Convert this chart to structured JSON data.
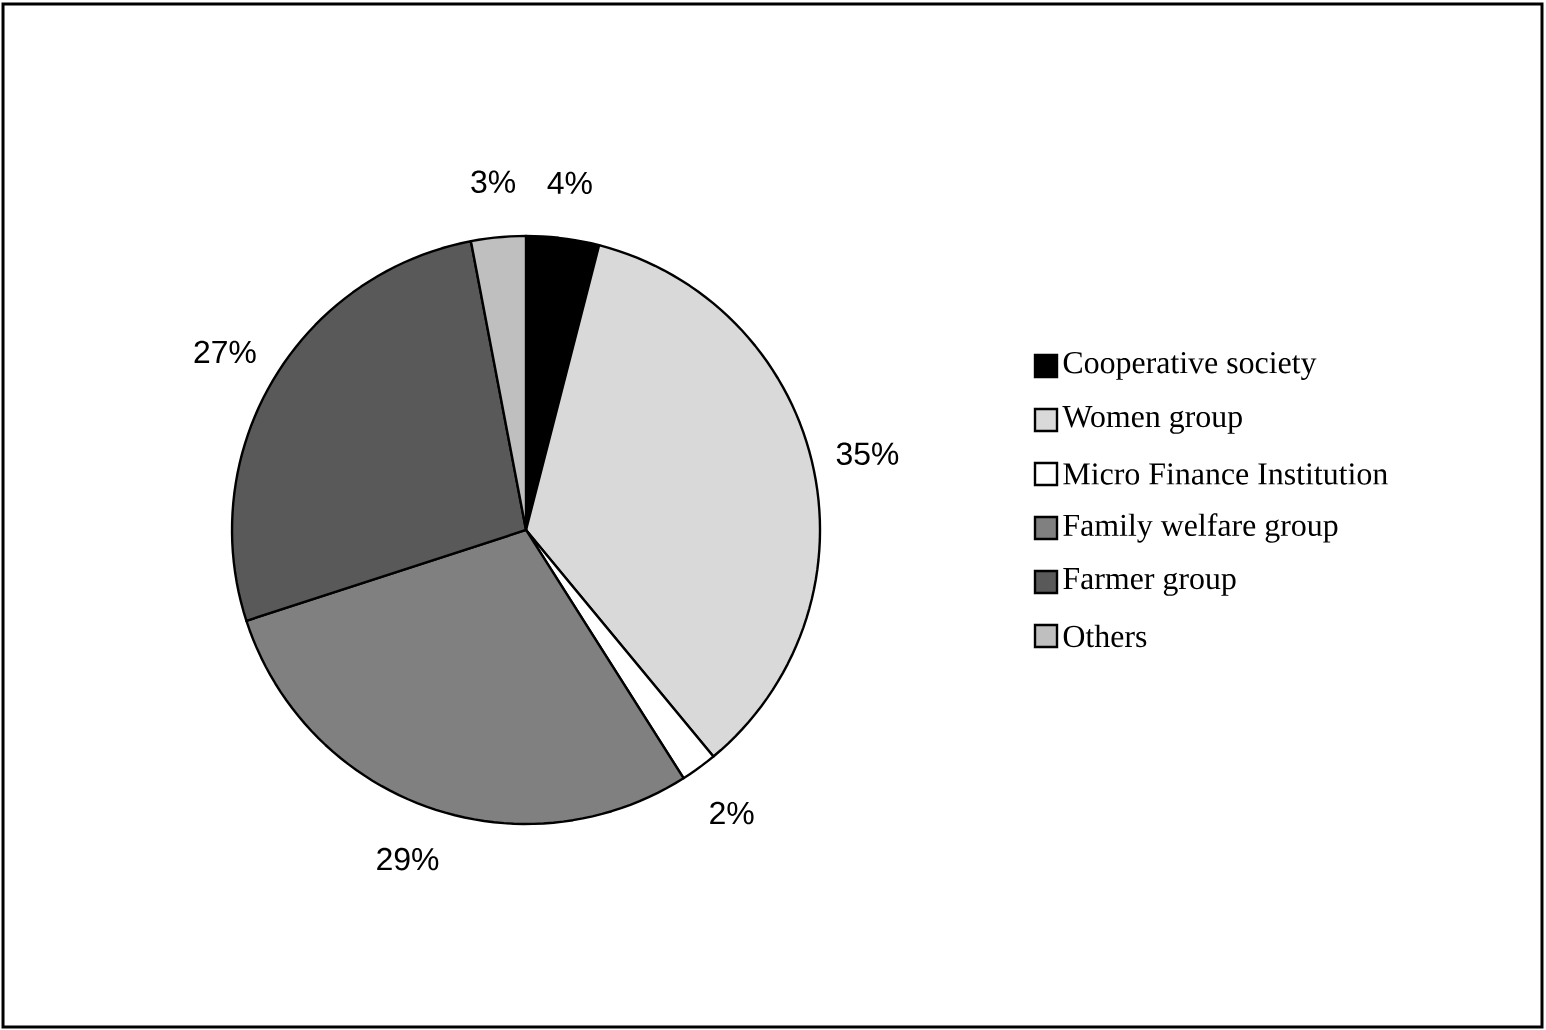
{
  "chart_data": {
    "type": "pie",
    "categories": [
      "Cooperative society",
      "Women group",
      "Micro Finance Institution",
      "Family welfare group",
      "Farmer group",
      "Others"
    ],
    "values": [
      4,
      35,
      2,
      29,
      27,
      3
    ],
    "colors": [
      "#000000",
      "#d9d9d9",
      "#ffffff",
      "#808080",
      "#595959",
      "#bfbfbf"
    ],
    "value_labels": [
      "4%",
      "35%",
      "2%",
      "29%",
      "27%",
      "3%"
    ],
    "legend": "right"
  }
}
